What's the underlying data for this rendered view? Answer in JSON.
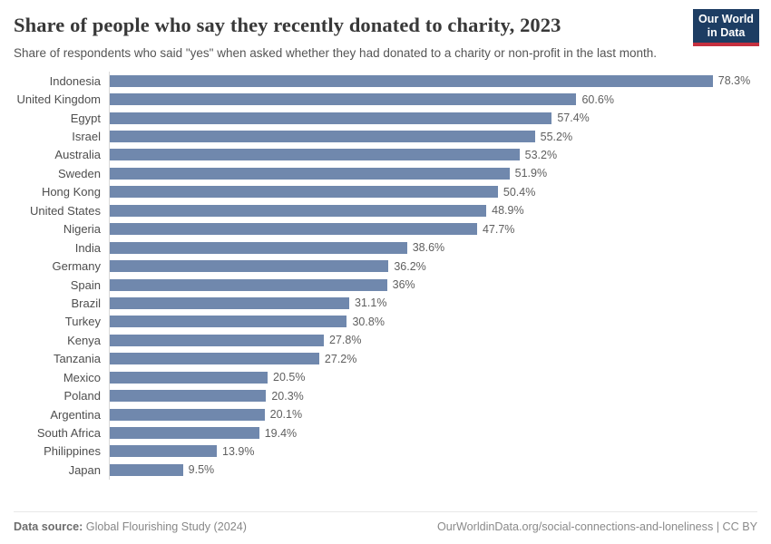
{
  "header": {
    "title": "Share of people who say they recently donated to charity, 2023",
    "subtitle": "Share of respondents who said \"yes\" when asked whether they had donated to a charity or non-profit in the last month.",
    "logo": {
      "line1": "Our World",
      "line2": "in Data",
      "bg_color": "#1d3d63",
      "accent_color": "#c5303f"
    }
  },
  "chart_data": {
    "type": "bar",
    "orientation": "horizontal",
    "title": "Share of people who say they recently donated to charity, 2023",
    "xlabel": "",
    "ylabel": "",
    "unit": "%",
    "xlim": [
      0,
      80
    ],
    "grid": false,
    "legend": "none",
    "bar_color": "#7088ad",
    "axis_line_color": "#d9d9d9",
    "categories": [
      "Indonesia",
      "United Kingdom",
      "Egypt",
      "Israel",
      "Australia",
      "Sweden",
      "Hong Kong",
      "United States",
      "Nigeria",
      "India",
      "Germany",
      "Spain",
      "Brazil",
      "Turkey",
      "Kenya",
      "Tanzania",
      "Mexico",
      "Poland",
      "Argentina",
      "South Africa",
      "Philippines",
      "Japan"
    ],
    "values": [
      78.3,
      60.6,
      57.4,
      55.2,
      53.2,
      51.9,
      50.4,
      48.9,
      47.7,
      38.6,
      36.2,
      36,
      31.1,
      30.8,
      27.8,
      27.2,
      20.5,
      20.3,
      20.1,
      19.4,
      13.9,
      9.5
    ],
    "value_labels": [
      "78.3%",
      "60.6%",
      "57.4%",
      "55.2%",
      "53.2%",
      "51.9%",
      "50.4%",
      "48.9%",
      "47.7%",
      "38.6%",
      "36.2%",
      "36%",
      "31.1%",
      "30.8%",
      "27.8%",
      "27.2%",
      "20.5%",
      "20.3%",
      "20.1%",
      "19.4%",
      "13.9%",
      "9.5%"
    ]
  },
  "footer": {
    "datasource_label": "Data source:",
    "datasource_value": "Global Flourishing Study (2024)",
    "credit": "OurWorldinData.org/social-connections-and-loneliness | CC BY"
  }
}
